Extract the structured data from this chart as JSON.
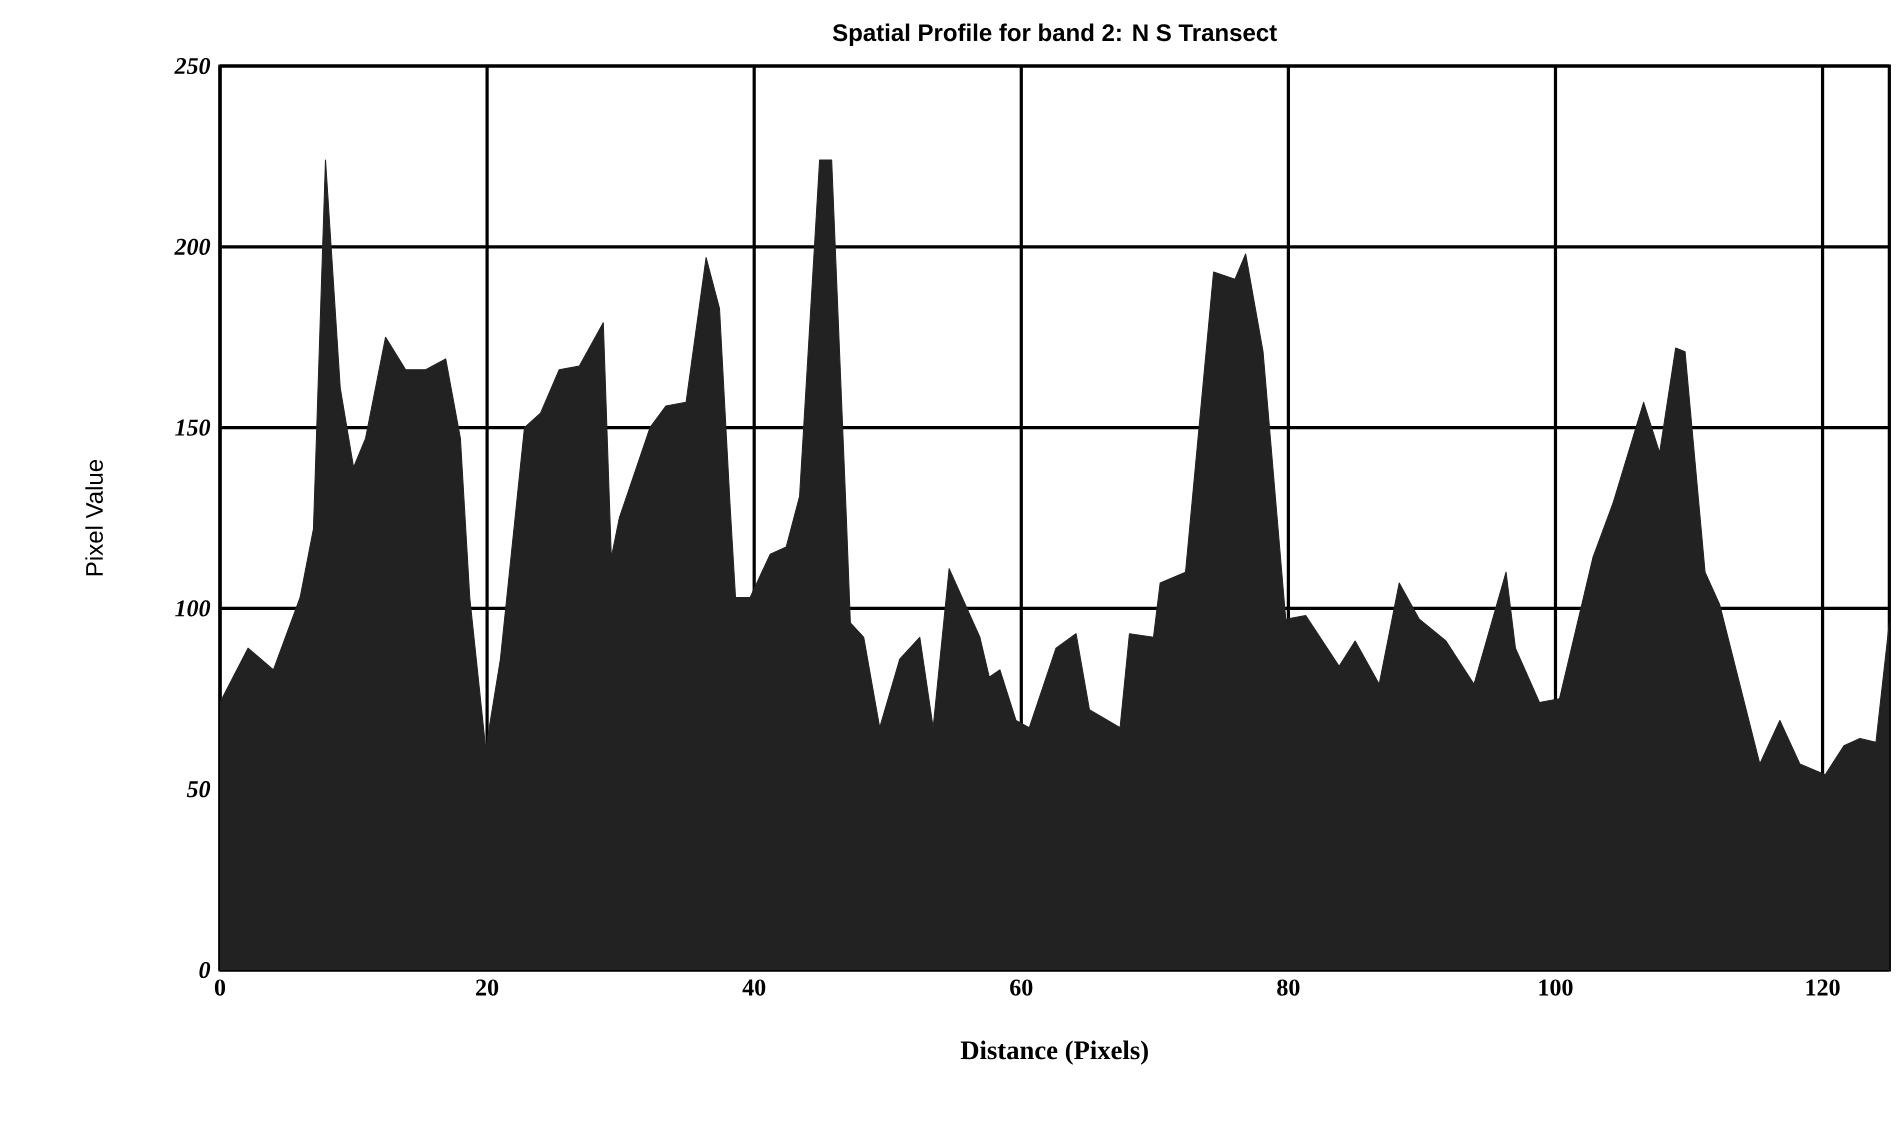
{
  "chart_data": {
    "type": "area",
    "title": "Spatial Profile for band 2: N S Transect",
    "xlabel": "Distance (Pixels)",
    "ylabel": "Pixel Value",
    "x": [
      0,
      2.1,
      4.0,
      6.0,
      7.0,
      7.9,
      9.0,
      10.0,
      10.9,
      12.4,
      13.9,
      15.4,
      16.9,
      18.0,
      18.7,
      19.9,
      21.0,
      22.8,
      24.0,
      25.4,
      26.9,
      28.7,
      29.3,
      29.9,
      32.2,
      33.4,
      34.9,
      36.4,
      37.4,
      38.2,
      38.6,
      39.7,
      41.2,
      42.4,
      43.4,
      44.9,
      45.8,
      46.9,
      47.2,
      48.2,
      49.4,
      50.9,
      52.4,
      53.4,
      54.6,
      56.9,
      57.6,
      58.4,
      59.6,
      60.6,
      62.6,
      64.1,
      65.1,
      67.4,
      68.1,
      69.9,
      70.4,
      72.3,
      74.4,
      76.0,
      76.8,
      78.1,
      79.8,
      81.3,
      83.8,
      85.0,
      86.8,
      88.3,
      89.8,
      91.8,
      93.9,
      96.3,
      97.0,
      98.8,
      100.3,
      102.8,
      104.3,
      106.6,
      107.8,
      109.0,
      109.7,
      111.2,
      112.3,
      115.3,
      116.8,
      118.3,
      120.2,
      121.6,
      122.8,
      124.0,
      125.0
    ],
    "values": [
      74,
      89,
      83,
      103,
      122,
      224,
      161,
      139,
      147,
      175,
      166,
      166,
      169,
      147,
      103,
      61,
      86,
      150,
      154,
      166,
      167,
      179,
      114,
      125,
      150,
      156,
      157,
      197,
      183,
      128,
      103,
      103,
      115,
      117,
      131,
      224,
      224,
      125,
      96,
      92,
      67,
      86,
      92,
      67,
      111,
      92,
      81,
      83,
      69,
      67,
      89,
      93,
      72,
      67,
      93,
      92,
      107,
      110,
      193,
      191,
      198,
      171,
      97,
      98,
      84,
      91,
      79,
      107,
      97,
      91,
      79,
      110,
      89,
      74,
      75,
      114,
      129,
      157,
      143,
      172,
      171,
      110,
      101,
      57,
      69,
      57,
      54,
      62,
      64,
      63,
      96
    ],
    "color": "#222222",
    "xlim": [
      0,
      125
    ],
    "ylim": [
      0,
      250
    ],
    "xticks": [
      0,
      20,
      40,
      60,
      80,
      100,
      120
    ],
    "yticks": [
      0,
      50,
      100,
      150,
      200,
      250
    ],
    "grid": true
  }
}
